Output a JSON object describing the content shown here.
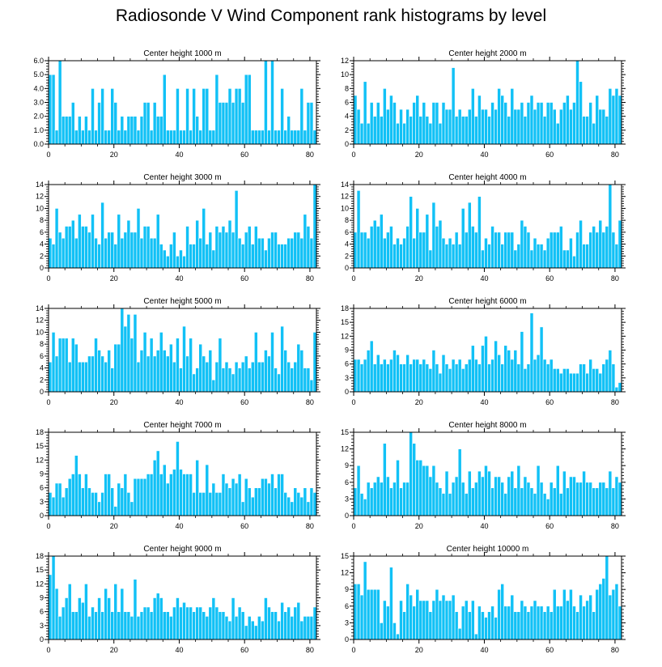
{
  "title": "Radiosonde V Wind Component rank histograms by level",
  "colors": {
    "bar": "#11c1f6",
    "bar_edge": "#ffffff",
    "axis": "#000000"
  },
  "chart_data": [
    {
      "type": "bar",
      "title": "Center height 1000 m",
      "xlabel": "",
      "ylabel": "",
      "x_start": 0,
      "xlim": [
        0,
        82
      ],
      "xticks": [
        0,
        20,
        40,
        60,
        80
      ],
      "ylim": [
        0,
        6
      ],
      "yticks": [
        0,
        1,
        2,
        3,
        4,
        5,
        6
      ],
      "ytick_labels": [
        "0.0",
        "1.0",
        "2.0",
        "3.0",
        "4.0",
        "5.0",
        "6.0"
      ],
      "values": [
        5,
        5,
        1,
        6,
        2,
        2,
        2,
        3,
        1,
        2,
        1,
        2,
        1,
        4,
        1,
        3,
        4,
        1,
        1,
        4,
        3,
        1,
        2,
        1,
        2,
        2,
        2,
        1,
        2,
        3,
        3,
        1,
        3,
        2,
        2,
        5,
        1,
        1,
        1,
        4,
        1,
        1,
        4,
        1,
        4,
        2,
        1,
        4,
        4,
        1,
        1,
        5,
        3,
        3,
        3,
        4,
        3,
        4,
        4,
        3,
        5,
        5,
        1,
        1,
        1,
        1,
        6,
        1,
        6,
        1,
        1,
        4,
        1,
        2,
        1,
        1,
        1,
        4,
        1,
        3,
        3,
        1
      ]
    },
    {
      "type": "bar",
      "title": "Center height 2000 m",
      "xlabel": "",
      "ylabel": "",
      "x_start": 0,
      "xlim": [
        0,
        82
      ],
      "xticks": [
        0,
        20,
        40,
        60,
        80
      ],
      "ylim": [
        0,
        12
      ],
      "yticks": [
        0,
        2,
        4,
        6,
        8,
        10,
        12
      ],
      "ytick_labels": [
        "0",
        "2",
        "4",
        "6",
        "8",
        "10",
        "12"
      ],
      "values": [
        7,
        5,
        3,
        9,
        3,
        6,
        4,
        6,
        4,
        8,
        5,
        7,
        6,
        3,
        5,
        3,
        5,
        4,
        6,
        7,
        4,
        6,
        4,
        3,
        6,
        6,
        3,
        6,
        5,
        5,
        11,
        4,
        5,
        4,
        4,
        5,
        8,
        4,
        7,
        5,
        5,
        4,
        6,
        5,
        8,
        7,
        6,
        4,
        8,
        5,
        5,
        6,
        4,
        6,
        7,
        5,
        6,
        6,
        4,
        6,
        6,
        5,
        3,
        5,
        6,
        7,
        5,
        6,
        12,
        9,
        4,
        4,
        6,
        3,
        7,
        5,
        5,
        4,
        8,
        7,
        8,
        7
      ]
    },
    {
      "type": "bar",
      "title": "Center height 3000 m",
      "xlabel": "",
      "ylabel": "",
      "x_start": 0,
      "xlim": [
        0,
        82
      ],
      "xticks": [
        0,
        20,
        40,
        60,
        80
      ],
      "ylim": [
        0,
        14
      ],
      "yticks": [
        0,
        2,
        4,
        6,
        8,
        10,
        12,
        14
      ],
      "ytick_labels": [
        "0",
        "2",
        "4",
        "6",
        "8",
        "10",
        "12",
        "14"
      ],
      "values": [
        5,
        4,
        10,
        6,
        5,
        7,
        7,
        8,
        5,
        9,
        7,
        7,
        6,
        9,
        5,
        4,
        11,
        5,
        6,
        6,
        4,
        9,
        5,
        6,
        8,
        6,
        6,
        10,
        5,
        7,
        7,
        5,
        5,
        9,
        4,
        3,
        2,
        4,
        6,
        2,
        3,
        2,
        7,
        4,
        4,
        8,
        5,
        10,
        4,
        6,
        3,
        7,
        6,
        7,
        6,
        8,
        6,
        13,
        5,
        4,
        6,
        7,
        4,
        7,
        5,
        5,
        3,
        5,
        6,
        6,
        4,
        4,
        4,
        5,
        5,
        6,
        6,
        5,
        9,
        7,
        5,
        14
      ]
    },
    {
      "type": "bar",
      "title": "Center height 4000 m",
      "xlabel": "",
      "ylabel": "",
      "x_start": 0,
      "xlim": [
        0,
        82
      ],
      "xticks": [
        0,
        20,
        40,
        60,
        80
      ],
      "ylim": [
        0,
        14
      ],
      "yticks": [
        0,
        2,
        4,
        6,
        8,
        10,
        12,
        14
      ],
      "ytick_labels": [
        "0",
        "2",
        "4",
        "6",
        "8",
        "10",
        "12",
        "14"
      ],
      "values": [
        6,
        13,
        6,
        6,
        5,
        7,
        8,
        7,
        9,
        5,
        6,
        7,
        4,
        5,
        4,
        5,
        7,
        12,
        5,
        10,
        6,
        6,
        9,
        3,
        11,
        7,
        8,
        5,
        4,
        5,
        4,
        6,
        4,
        10,
        6,
        11,
        7,
        6,
        12,
        3,
        5,
        4,
        7,
        6,
        6,
        4,
        6,
        6,
        6,
        3,
        4,
        8,
        7,
        6,
        3,
        5,
        4,
        4,
        3,
        5,
        6,
        6,
        6,
        7,
        3,
        3,
        5,
        2,
        6,
        8,
        4,
        4,
        6,
        7,
        6,
        8,
        6,
        7,
        14,
        6,
        4,
        8
      ]
    },
    {
      "type": "bar",
      "title": "Center height 5000 m",
      "xlabel": "",
      "ylabel": "",
      "x_start": 0,
      "xlim": [
        0,
        82
      ],
      "xticks": [
        0,
        20,
        40,
        60,
        80
      ],
      "ylim": [
        0,
        14
      ],
      "yticks": [
        0,
        2,
        4,
        6,
        8,
        10,
        12,
        14
      ],
      "ytick_labels": [
        "0",
        "2",
        "4",
        "6",
        "8",
        "10",
        "12",
        "14"
      ],
      "values": [
        5,
        10,
        6,
        9,
        9,
        9,
        5,
        9,
        8,
        5,
        5,
        5,
        6,
        6,
        9,
        7,
        6,
        5,
        7,
        4,
        8,
        8,
        14,
        11,
        13,
        9,
        13,
        5,
        7,
        10,
        6,
        9,
        6,
        7,
        10,
        7,
        6,
        8,
        5,
        9,
        4,
        11,
        6,
        9,
        3,
        4,
        8,
        6,
        5,
        7,
        2,
        5,
        9,
        4,
        5,
        4,
        3,
        5,
        4,
        5,
        6,
        4,
        5,
        10,
        5,
        5,
        7,
        6,
        10,
        4,
        3,
        11,
        7,
        5,
        4,
        5,
        8,
        7,
        4,
        4,
        2,
        10
      ]
    },
    {
      "type": "bar",
      "title": "Center height 6000 m",
      "xlabel": "",
      "ylabel": "",
      "x_start": 0,
      "xlim": [
        0,
        82
      ],
      "xticks": [
        0,
        20,
        40,
        60,
        80
      ],
      "ylim": [
        0,
        18
      ],
      "yticks": [
        0,
        3,
        6,
        9,
        12,
        15,
        18
      ],
      "ytick_labels": [
        "0",
        "3",
        "6",
        "9",
        "12",
        "15",
        "18"
      ],
      "values": [
        7,
        7,
        6,
        7,
        9,
        11,
        6,
        8,
        6,
        7,
        6,
        7,
        9,
        8,
        6,
        6,
        8,
        6,
        7,
        7,
        6,
        7,
        6,
        5,
        9,
        6,
        4,
        8,
        6,
        5,
        7,
        6,
        7,
        5,
        6,
        7,
        10,
        7,
        6,
        10,
        12,
        6,
        7,
        11,
        8,
        6,
        10,
        9,
        7,
        9,
        6,
        13,
        5,
        6,
        17,
        7,
        8,
        14,
        7,
        6,
        7,
        5,
        5,
        4,
        5,
        5,
        4,
        4,
        4,
        6,
        6,
        4,
        7,
        5,
        5,
        4,
        6,
        7,
        9,
        6,
        1,
        2
      ]
    },
    {
      "type": "bar",
      "title": "Center height 7000 m",
      "xlabel": "",
      "ylabel": "",
      "x_start": 0,
      "xlim": [
        0,
        82
      ],
      "xticks": [
        0,
        20,
        40,
        60,
        80
      ],
      "ylim": [
        0,
        18
      ],
      "yticks": [
        0,
        3,
        6,
        9,
        12,
        15,
        18
      ],
      "ytick_labels": [
        "0",
        "3",
        "6",
        "9",
        "12",
        "15",
        "18"
      ],
      "values": [
        5,
        4,
        7,
        7,
        4,
        6,
        8,
        9,
        13,
        9,
        6,
        9,
        6,
        5,
        5,
        3,
        5,
        9,
        9,
        6,
        2,
        7,
        6,
        9,
        5,
        3,
        8,
        8,
        8,
        8,
        9,
        9,
        12,
        14,
        9,
        11,
        7,
        9,
        10,
        16,
        10,
        9,
        9,
        9,
        5,
        12,
        5,
        5,
        11,
        5,
        7,
        5,
        5,
        9,
        7,
        6,
        8,
        7,
        9,
        3,
        8,
        6,
        4,
        6,
        6,
        8,
        8,
        7,
        9,
        6,
        9,
        9,
        5,
        4,
        3,
        6,
        5,
        4,
        6,
        3,
        6,
        5
      ]
    },
    {
      "type": "bar",
      "title": "Center height 8000 m",
      "xlabel": "",
      "ylabel": "",
      "x_start": 0,
      "xlim": [
        0,
        82
      ],
      "xticks": [
        0,
        20,
        40,
        60,
        80
      ],
      "ylim": [
        0,
        15
      ],
      "yticks": [
        0,
        3,
        6,
        9,
        12,
        15
      ],
      "ytick_labels": [
        "0",
        "3",
        "6",
        "9",
        "12",
        "15"
      ],
      "values": [
        5,
        9,
        4,
        3,
        6,
        5,
        6,
        7,
        6,
        13,
        7,
        5,
        6,
        10,
        5,
        6,
        6,
        15,
        13,
        10,
        10,
        9,
        9,
        7,
        9,
        6,
        5,
        4,
        8,
        4,
        6,
        7,
        12,
        6,
        4,
        8,
        5,
        6,
        8,
        7,
        9,
        8,
        5,
        7,
        7,
        6,
        4,
        7,
        8,
        5,
        9,
        5,
        7,
        6,
        5,
        4,
        9,
        6,
        4,
        3,
        6,
        5,
        9,
        4,
        8,
        5,
        7,
        7,
        6,
        6,
        8,
        6,
        6,
        5,
        5,
        6,
        6,
        5,
        8,
        5,
        7,
        6
      ]
    },
    {
      "type": "bar",
      "title": "Center height 9000 m",
      "xlabel": "",
      "ylabel": "",
      "x_start": 0,
      "xlim": [
        0,
        82
      ],
      "xticks": [
        0,
        20,
        40,
        60,
        80
      ],
      "ylim": [
        0,
        18
      ],
      "yticks": [
        0,
        3,
        6,
        9,
        12,
        15,
        18
      ],
      "ytick_labels": [
        "0",
        "3",
        "6",
        "9",
        "12",
        "15",
        "18"
      ],
      "values": [
        14,
        18,
        11,
        5,
        7,
        9,
        12,
        6,
        6,
        9,
        8,
        12,
        5,
        7,
        6,
        9,
        6,
        11,
        9,
        6,
        12,
        6,
        11,
        6,
        6,
        5,
        13,
        5,
        6,
        7,
        7,
        6,
        9,
        10,
        9,
        6,
        6,
        5,
        7,
        9,
        7,
        8,
        7,
        7,
        6,
        7,
        7,
        6,
        5,
        7,
        9,
        7,
        6,
        6,
        5,
        4,
        9,
        5,
        7,
        6,
        3,
        5,
        4,
        3,
        5,
        4,
        9,
        7,
        6,
        6,
        4,
        8,
        6,
        7,
        5,
        7,
        8,
        4,
        5,
        5,
        5,
        7
      ]
    },
    {
      "type": "bar",
      "title": "Center height 10000 m",
      "xlabel": "",
      "ylabel": "",
      "x_start": 0,
      "xlim": [
        0,
        82
      ],
      "xticks": [
        0,
        20,
        40,
        60,
        80
      ],
      "ylim": [
        0,
        15
      ],
      "yticks": [
        0,
        3,
        6,
        9,
        12,
        15
      ],
      "ytick_labels": [
        "0",
        "3",
        "6",
        "9",
        "12",
        "15"
      ],
      "values": [
        10,
        10,
        8,
        14,
        9,
        9,
        9,
        9,
        3,
        7,
        6,
        13,
        3,
        1,
        7,
        5,
        10,
        8,
        6,
        9,
        7,
        7,
        7,
        5,
        7,
        9,
        7,
        8,
        7,
        7,
        8,
        5,
        2,
        6,
        7,
        5,
        7,
        1,
        6,
        5,
        4,
        5,
        6,
        4,
        9,
        10,
        6,
        6,
        8,
        5,
        5,
        7,
        6,
        5,
        6,
        7,
        6,
        6,
        5,
        6,
        5,
        9,
        6,
        6,
        9,
        7,
        9,
        6,
        5,
        8,
        6,
        7,
        8,
        5,
        9,
        10,
        11,
        15,
        8,
        9,
        10,
        6
      ]
    }
  ]
}
